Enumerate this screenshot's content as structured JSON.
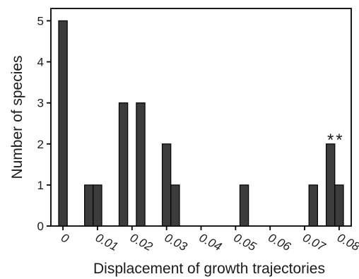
{
  "chart_data": {
    "type": "bar",
    "title": "",
    "xlabel": "Displacement of growth trajectories",
    "ylabel": "Number of species",
    "ylim": [
      0,
      5.3
    ],
    "xlim": [
      -0.0035,
      0.0835
    ],
    "yticks": [
      0,
      1,
      2,
      3,
      4,
      5
    ],
    "xticks": [
      {
        "value": 0,
        "label": "0"
      },
      {
        "value": 0.01,
        "label": "0.01"
      },
      {
        "value": 0.02,
        "label": "0.02"
      },
      {
        "value": 0.03,
        "label": "0.03"
      },
      {
        "value": 0.04,
        "label": "0.04"
      },
      {
        "value": 0.05,
        "label": "0.05"
      },
      {
        "value": 0.06,
        "label": "0.06"
      },
      {
        "value": 0.07,
        "label": "0.07"
      },
      {
        "value": 0.08,
        "label": "0.08"
      }
    ],
    "bin_width": 0.0025,
    "bars": [
      {
        "x": 0.0,
        "count": 5
      },
      {
        "x": 0.0075,
        "count": 1
      },
      {
        "x": 0.01,
        "count": 1
      },
      {
        "x": 0.0175,
        "count": 3
      },
      {
        "x": 0.0225,
        "count": 3
      },
      {
        "x": 0.03,
        "count": 2
      },
      {
        "x": 0.0325,
        "count": 1
      },
      {
        "x": 0.0525,
        "count": 1
      },
      {
        "x": 0.0725,
        "count": 1
      },
      {
        "x": 0.0775,
        "count": 2
      },
      {
        "x": 0.08,
        "count": 1
      }
    ],
    "annotations": [
      {
        "text": "*",
        "x": 0.0775,
        "y": 2
      },
      {
        "text": "*",
        "x": 0.08,
        "y": 2
      }
    ],
    "grid": false,
    "colors": {
      "bar_fill": "#3c3c3c",
      "bar_edge": "#000000",
      "axis": "#000000"
    }
  }
}
